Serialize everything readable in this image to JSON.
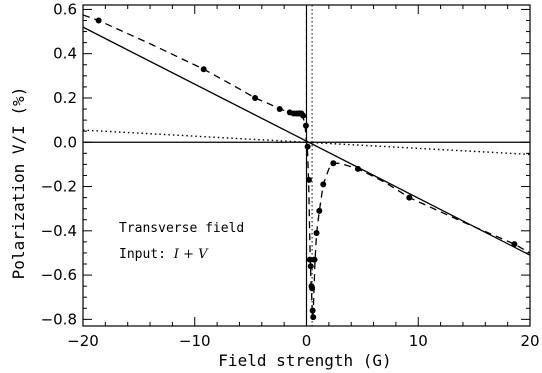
{
  "chart_data": {
    "type": "scatter",
    "title": "",
    "xlabel": "Field strength (G)",
    "ylabel": "Polarization V/I (%)",
    "xlim": [
      -20,
      20
    ],
    "ylim": [
      -0.83,
      0.62
    ],
    "x_ticks": [
      -20,
      -10,
      0,
      10,
      20
    ],
    "y_ticks": [
      -0.8,
      -0.6,
      -0.4,
      -0.2,
      0.0,
      0.2,
      0.4,
      0.6
    ],
    "x_tick_labels": [
      "−20",
      "−10",
      "0",
      "10",
      "20"
    ],
    "y_tick_labels": [
      "−0.8",
      "−0.6",
      "−0.4",
      "−0.2",
      "0.0",
      "0.2",
      "0.4",
      "0.6"
    ],
    "grid": false,
    "annotations": {
      "line1": "Transverse field",
      "line2_prefix": "Input: ",
      "line2_math": "I + V"
    },
    "reference_lines": {
      "horizontal_y": 0,
      "vertical_solid_x": 0,
      "vertical_dotted_x": 0.5
    },
    "series": [
      {
        "style": "points",
        "x": [
          -18.6,
          -9.2,
          -4.6,
          -2.4,
          -1.5,
          -1.15,
          -0.9,
          -0.72,
          -0.58,
          -0.45,
          -0.3,
          -0.05,
          0.1,
          0.22,
          0.3,
          0.38,
          0.45,
          0.5,
          0.55,
          0.6,
          0.72,
          0.9,
          1.15,
          1.5,
          2.4,
          4.6,
          9.2,
          18.6
        ],
        "y": [
          0.55,
          0.33,
          0.2,
          0.15,
          0.135,
          0.13,
          0.13,
          0.13,
          0.13,
          0.13,
          0.12,
          0.075,
          -0.02,
          -0.17,
          -0.53,
          -0.56,
          -0.65,
          -0.66,
          -0.76,
          -0.79,
          -0.53,
          -0.41,
          -0.31,
          -0.19,
          -0.095,
          -0.12,
          -0.25,
          -0.46
        ]
      },
      {
        "style": "dashed",
        "x": [
          -20,
          -18.6,
          -14,
          -9.2,
          -6.5,
          -4.6,
          -3.2,
          -2.4,
          -1.8,
          -1.2,
          -0.8,
          -0.4,
          -0.15,
          0.0,
          0.1,
          0.2,
          0.3,
          0.38,
          0.45,
          0.5,
          0.55,
          0.6,
          0.65,
          0.75,
          0.9,
          1.15,
          1.5,
          2.0,
          2.4,
          3.0,
          4.6,
          7,
          9.2,
          14,
          18.6,
          20
        ],
        "y": [
          0.575,
          0.55,
          0.445,
          0.33,
          0.255,
          0.2,
          0.17,
          0.15,
          0.14,
          0.132,
          0.13,
          0.12,
          0.09,
          0.0,
          -0.05,
          -0.2,
          -0.45,
          -0.6,
          -0.68,
          -0.75,
          -0.79,
          -0.77,
          -0.7,
          -0.55,
          -0.41,
          -0.31,
          -0.19,
          -0.12,
          -0.095,
          -0.095,
          -0.12,
          -0.18,
          -0.25,
          -0.36,
          -0.46,
          -0.5
        ]
      },
      {
        "style": "solid",
        "x": [
          -20,
          20
        ],
        "y": [
          0.52,
          -0.51
        ]
      },
      {
        "style": "dotted",
        "x": [
          -20,
          20
        ],
        "y": [
          0.055,
          -0.055
        ]
      }
    ]
  }
}
